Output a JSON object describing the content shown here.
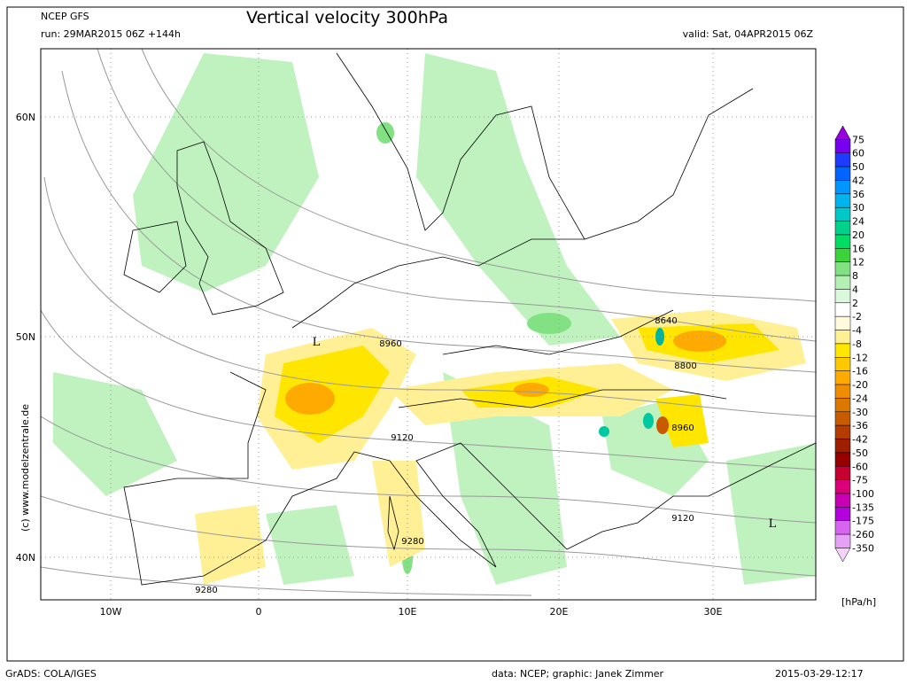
{
  "header": {
    "model": "NCEP GFS",
    "title": "Vertical velocity 300hPa",
    "run": "run: 29MAR2015 06Z +144h",
    "valid": "valid: Sat, 04APR2015 06Z"
  },
  "axes": {
    "lon_labels": [
      "10W",
      "0",
      "10E",
      "20E",
      "30E"
    ],
    "lat_labels": [
      "60N",
      "50N",
      "40N"
    ]
  },
  "colorbar": {
    "labels": [
      "75",
      "60",
      "50",
      "42",
      "36",
      "30",
      "24",
      "20",
      "16",
      "12",
      "8",
      "4",
      "2",
      "-2",
      "-4",
      "-8",
      "-12",
      "-16",
      "-20",
      "-24",
      "-30",
      "-36",
      "-42",
      "-50",
      "-60",
      "-75",
      "-100",
      "-135",
      "-175",
      "-260",
      "-350"
    ],
    "colors": [
      "#9600dc",
      "#7800f0",
      "#1e3cff",
      "#0064ff",
      "#0096ff",
      "#00b4f0",
      "#00c8c8",
      "#00d28c",
      "#00dc64",
      "#3cd23c",
      "#82e182",
      "#b4f0b4",
      "#dcf8dc",
      "#ffffff",
      "#fffadc",
      "#fff096",
      "#ffe600",
      "#ffc800",
      "#ffaa00",
      "#f08c00",
      "#dc7800",
      "#c85a00",
      "#b43c00",
      "#a01e00",
      "#960000",
      "#c80032",
      "#dc0078",
      "#c800b4",
      "#b400dc",
      "#d764f0",
      "#e6a0f5",
      "#f5d2fa"
    ],
    "unit": "[hPa/h]"
  },
  "contour_labels": [
    "8640",
    "8960",
    "8800",
    "8960",
    "9120",
    "9280",
    "9120",
    "9280"
  ],
  "lows": [
    "L",
    "L"
  ],
  "copyright": "(c) www.modelzentrale.de",
  "footer": {
    "left": "GrADS: COLA/IGES",
    "center": "data: NCEP; graphic: Janek Zimmer",
    "right": "2015-03-29-12:17"
  }
}
